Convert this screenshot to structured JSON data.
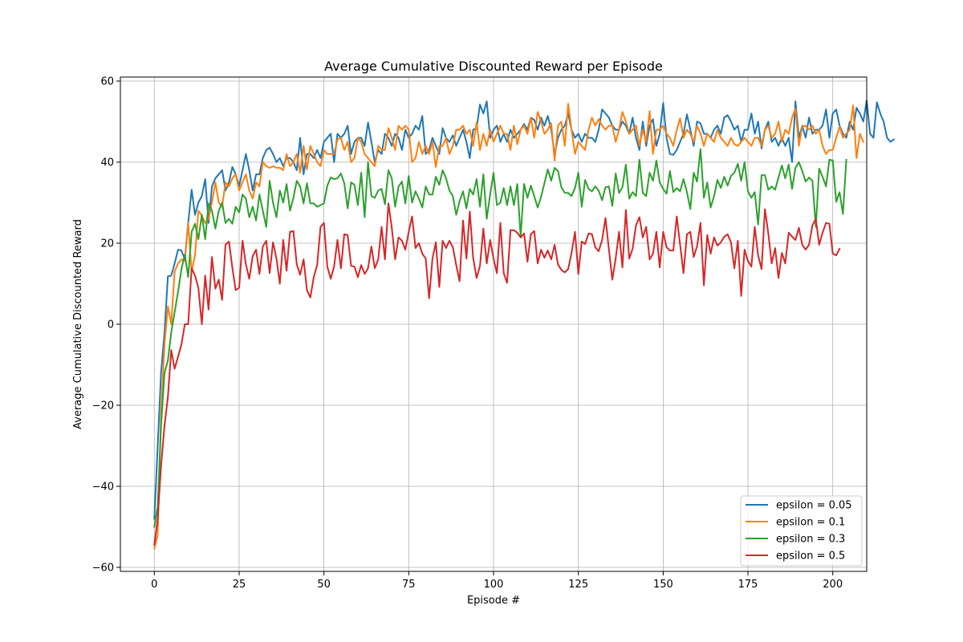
{
  "chart_data": {
    "type": "line",
    "title": "Average Cumulative Discounted Reward per Episode",
    "xlabel": "Episode #",
    "ylabel": "Average Cumulative Discounted Reward",
    "xlim": [
      -10,
      210
    ],
    "ylim": [
      -61,
      61
    ],
    "xticks": [
      0,
      25,
      50,
      75,
      100,
      125,
      150,
      175,
      200
    ],
    "yticks": [
      -60,
      -40,
      -20,
      0,
      20,
      40,
      60
    ],
    "grid": true,
    "legend_position": "lower-right",
    "x_start": 0,
    "x_step": 1,
    "series": [
      {
        "name": "epsilon = 0.05",
        "color": "#1f77b4",
        "values": [
          -48.0,
          -30.0,
          -12.0,
          -2.0,
          11.8,
          12.0,
          15.0,
          18.4,
          18.2,
          16.0,
          25.0,
          33.2,
          27.0,
          30.0,
          31.6,
          35.8,
          25.0,
          34.0,
          36.0,
          37.0,
          38.0,
          33.0,
          35.0,
          38.8,
          37.0,
          34.0,
          38.0,
          42.0,
          38.0,
          33.0,
          37.0,
          37.0,
          41.0,
          43.0,
          43.6,
          42.0,
          40.0,
          41.0,
          39.0,
          41.0,
          41.0,
          40.0,
          38.0,
          46.0,
          37.0,
          42.0,
          42.0,
          41.0,
          43.0,
          41.0,
          45.0,
          46.0,
          47.0,
          40.0,
          47.0,
          46.0,
          47.0,
          49.0,
          42.0,
          45.0,
          46.0,
          46.0,
          44.0,
          49.8,
          45.0,
          40.0,
          43.0,
          42.0,
          47.0,
          46.0,
          44.0,
          47.0,
          46.0,
          43.0,
          48.0,
          46.0,
          47.0,
          49.0,
          48.0,
          51.4,
          42.0,
          43.0,
          46.0,
          44.0,
          42.0,
          48.4,
          46.0,
          45.0,
          46.6,
          44.0,
          46.0,
          48.0,
          45.0,
          41.0,
          48.0,
          48.4,
          54.2,
          52.0,
          55.0,
          46.0,
          48.0,
          49.0,
          45.0,
          47.0,
          45.0,
          48.0,
          46.0,
          47.0,
          48.0,
          49.4,
          48.0,
          51.0,
          50.4,
          48.0,
          51.0,
          49.0,
          51.4,
          48.0,
          41.8,
          46.0,
          48.0,
          49.0,
          52.0,
          48.0,
          46.0,
          47.0,
          45.0,
          47.0,
          46.0,
          46.0,
          45.0,
          48.0,
          53.0,
          52.0,
          51.0,
          49.0,
          48.0,
          48.0,
          50.0,
          49.0,
          47.0,
          51.0,
          46.0,
          43.0,
          50.0,
          44.0,
          49.0,
          50.6,
          44.0,
          47.0,
          54.6,
          46.0,
          42.0,
          41.8,
          43.0,
          45.0,
          47.0,
          51.8,
          48.0,
          44.0,
          50.0,
          49.6,
          47.0,
          47.0,
          46.0,
          48.0,
          49.0,
          47.0,
          51.0,
          51.6,
          50.0,
          48.0,
          49.0,
          45.0,
          48.0,
          48.0,
          52.0,
          47.0,
          50.0,
          43.4,
          48.0,
          50.0,
          45.0,
          46.0,
          44.0,
          46.0,
          44.0,
          46.0,
          40.0,
          55.0,
          46.0,
          49.0,
          46.0,
          51.0,
          47.0,
          48.0,
          48.0,
          49.0,
          53.0,
          46.0,
          52.0,
          53.0,
          49.0,
          47.0,
          46.0,
          50.0,
          48.0,
          53.4,
          52.0,
          50.0,
          55.2,
          47.0,
          46.0,
          54.8,
          52.0,
          50.0,
          46.0,
          45.0,
          45.6
        ]
      },
      {
        "name": "epsilon = 0.1",
        "color": "#ff7f0e",
        "values": [
          -55.4,
          -52.0,
          -22.0,
          -5.0,
          4.4,
          0.0,
          13.0,
          15.0,
          16.0,
          15.6,
          25.0,
          13.0,
          17.0,
          28.0,
          26.8,
          25.0,
          26.0,
          30.0,
          35.0,
          30.0,
          29.0,
          35.0,
          34.0,
          36.0,
          37.0,
          33.0,
          35.0,
          37.0,
          33.0,
          31.0,
          35.0,
          34.0,
          40.0,
          39.0,
          38.6,
          39.0,
          38.6,
          38.6,
          38.0,
          42.0,
          39.0,
          40.0,
          42.0,
          37.4,
          44.0,
          38.2,
          44.0,
          42.0,
          40.0,
          39.0,
          43.0,
          42.0,
          42.0,
          42.0,
          45.6,
          46.0,
          43.0,
          45.0,
          40.0,
          41.0,
          46.0,
          45.0,
          42.0,
          41.0,
          40.0,
          39.0,
          44.0,
          43.0,
          43.0,
          48.4,
          46.0,
          43.0,
          49.0,
          48.0,
          49.0,
          48.0,
          40.0,
          41.0,
          45.0,
          42.0,
          44.0,
          42.0,
          45.0,
          38.8,
          44.0,
          44.0,
          46.0,
          42.0,
          44.0,
          48.0,
          48.0,
          49.0,
          47.0,
          48.0,
          44.0,
          49.8,
          43.0,
          47.0,
          44.0,
          48.0,
          45.0,
          47.0,
          49.0,
          47.0,
          47.0,
          43.0,
          49.0,
          44.4,
          48.0,
          49.0,
          47.0,
          51.0,
          46.0,
          52.4,
          50.0,
          47.0,
          48.0,
          49.6,
          40.4,
          49.0,
          50.0,
          44.0,
          54.4,
          48.0,
          42.0,
          45.0,
          44.0,
          43.0,
          48.0,
          51.0,
          49.0,
          50.6,
          49.0,
          48.0,
          49.0,
          49.0,
          45.0,
          48.0,
          52.4,
          50.0,
          47.0,
          48.0,
          49.0,
          44.0,
          48.0,
          45.0,
          52.6,
          42.0,
          48.0,
          48.0,
          49.0,
          47.0,
          46.0,
          44.0,
          48.0,
          50.8,
          46.0,
          48.0,
          47.0,
          45.0,
          49.0,
          47.0,
          44.0,
          47.0,
          46.0,
          45.0,
          48.0,
          46.0,
          45.0,
          44.0,
          46.0,
          44.4,
          44.0,
          45.0,
          46.0,
          45.0,
          44.0,
          46.0,
          46.0,
          44.0,
          48.0,
          49.0,
          46.0,
          47.0,
          50.0,
          45.0,
          48.0,
          47.0,
          51.0,
          53.2,
          44.0,
          48.8,
          49.0,
          48.0,
          49.0,
          47.0,
          48.0,
          44.0,
          42.0,
          43.0,
          43.0,
          46.0,
          48.8,
          46.0,
          47.0,
          48.0,
          54.0,
          41.0,
          47.0,
          45.0
        ]
      },
      {
        "name": "epsilon = 0.3",
        "color": "#2ca02c",
        "values": [
          -50.0,
          -45.0,
          -25.0,
          -12.0,
          -9.0,
          -2.0,
          3.0,
          8.0,
          13.6,
          17.2,
          11.6,
          22.8,
          24.8,
          21.0,
          27.0,
          21.0,
          29.8,
          28.0,
          23.6,
          28.0,
          30.0,
          25.0,
          26.0,
          24.8,
          29.0,
          27.6,
          32.0,
          31.0,
          26.4,
          29.0,
          25.6,
          32.0,
          28.0,
          24.0,
          35.4,
          30.0,
          26.4,
          33.0,
          30.0,
          34.6,
          28.0,
          31.2,
          35.4,
          34.0,
          29.8,
          34.8,
          29.8,
          29.8,
          29.0,
          29.4,
          29.8,
          34.2,
          36.2,
          35.8,
          36.0,
          37.2,
          34.8,
          28.6,
          35.0,
          34.4,
          29.4,
          37.4,
          26.4,
          40.0,
          31.6,
          31.2,
          33.0,
          33.4,
          29.6,
          38.0,
          36.0,
          29.0,
          34.0,
          35.2,
          29.8,
          36.6,
          30.0,
          32.8,
          31.0,
          28.8,
          34.0,
          32.0,
          32.0,
          36.4,
          34.4,
          38.0,
          36.0,
          33.0,
          31.6,
          27.0,
          30.4,
          32.8,
          28.6,
          33.4,
          32.0,
          35.8,
          29.0,
          37.0,
          26.0,
          32.0,
          37.4,
          29.4,
          30.0,
          33.6,
          29.4,
          34.0,
          29.4,
          34.6,
          21.6,
          34.6,
          31.2,
          34.2,
          31.6,
          28.8,
          31.4,
          34.8,
          38.2,
          35.4,
          38.6,
          37.8,
          33.8,
          32.4,
          32.4,
          31.6,
          33.6,
          37.4,
          29.0,
          35.6,
          33.4,
          32.8,
          34.0,
          33.0,
          30.6,
          33.8,
          34.0,
          29.2,
          37.2,
          32.4,
          33.8,
          39.4,
          31.0,
          32.6,
          31.6,
          40.6,
          32.4,
          31.6,
          37.4,
          35.4,
          40.4,
          35.0,
          33.4,
          32.2,
          37.8,
          32.6,
          33.6,
          32.8,
          35.8,
          32.6,
          28.4,
          37.4,
          35.2,
          43.2,
          31.2,
          35.0,
          28.8,
          31.6,
          35.6,
          33.6,
          36.4,
          34.2,
          36.6,
          37.4,
          39.6,
          35.4,
          40.0,
          32.8,
          31.2,
          32.6,
          24.6,
          36.8,
          36.8,
          33.2,
          34.0,
          33.2,
          36.2,
          39.2,
          36.0,
          39.4,
          33.4,
          38.6,
          40.0,
          37.8,
          35.2,
          36.2,
          35.4,
          24.0,
          38.4,
          36.4,
          34.0,
          40.6,
          40.4,
          30.2,
          32.6,
          27.2,
          40.6
        ]
      },
      {
        "name": "epsilon = 0.5",
        "color": "#d62728",
        "values": [
          -54.4,
          -48.0,
          -35.0,
          -25.0,
          -18.0,
          -6.4,
          -11.0,
          -8.0,
          -5.0,
          0.0,
          0.0,
          13.8,
          12.0,
          9.0,
          0.0,
          12.0,
          3.6,
          16.6,
          8.8,
          11.0,
          6.0,
          19.6,
          20.4,
          14.0,
          8.4,
          9.0,
          20.6,
          14.8,
          11.2,
          16.8,
          18.4,
          12.4,
          19.2,
          20.6,
          12.6,
          20.2,
          16.2,
          10.0,
          20.8,
          13.2,
          22.8,
          23.0,
          14.8,
          12.2,
          16.0,
          8.4,
          6.6,
          11.6,
          14.6,
          24.0,
          25.0,
          14.2,
          11.2,
          14.2,
          20.8,
          13.8,
          22.2,
          22.0,
          14.4,
          14.2,
          11.6,
          14.6,
          12.4,
          13.8,
          19.2,
          13.8,
          16.0,
          24.0,
          16.0,
          29.8,
          23.8,
          16.0,
          21.4,
          20.6,
          18.4,
          22.8,
          26.6,
          18.8,
          20.0,
          17.4,
          16.2,
          6.4,
          16.2,
          20.2,
          9.2,
          20.6,
          18.8,
          20.6,
          19.0,
          14.6,
          10.6,
          25.6,
          16.2,
          27.8,
          16.4,
          11.4,
          14.4,
          23.6,
          15.0,
          20.8,
          16.2,
          12.6,
          25.0,
          12.6,
          10.2,
          23.2,
          23.2,
          22.6,
          21.4,
          22.4,
          15.4,
          22.2,
          23.0,
          15.0,
          18.4,
          16.4,
          18.2,
          16.0,
          19.6,
          14.8,
          13.4,
          12.8,
          13.6,
          17.6,
          22.8,
          12.4,
          20.4,
          19.8,
          22.4,
          22.2,
          19.0,
          18.0,
          20.8,
          26.2,
          18.6,
          11.0,
          16.2,
          22.8,
          14.0,
          28.2,
          16.2,
          18.6,
          24.4,
          26.4,
          21.4,
          24.0,
          16.0,
          17.4,
          22.8,
          14.0,
          22.8,
          19.0,
          18.2,
          18.2,
          26.6,
          19.6,
          12.6,
          22.2,
          22.8,
          16.6,
          19.2,
          25.0,
          9.6,
          22.0,
          17.4,
          21.4,
          19.4,
          20.2,
          21.6,
          22.2,
          20.2,
          13.8,
          20.6,
          7.0,
          18.4,
          15.6,
          14.2,
          24.0,
          17.0,
          13.6,
          28.4,
          22.4,
          15.0,
          18.8,
          11.4,
          17.6,
          15.0,
          22.6,
          21.6,
          20.8,
          23.8,
          19.6,
          18.4,
          19.6,
          24.4,
          26.0,
          19.6,
          22.6,
          25.0,
          24.8,
          17.4,
          17.0,
          18.6
        ]
      }
    ]
  }
}
